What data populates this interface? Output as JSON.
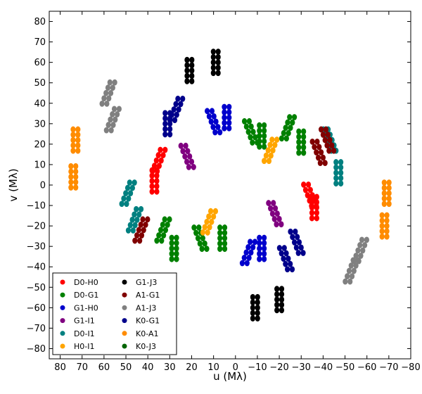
{
  "chart_data": {
    "type": "scatter",
    "xlabel": "u (Mλ)",
    "ylabel": "v (Mλ)",
    "xlim": [
      85,
      -80
    ],
    "ylim": [
      -85,
      85
    ],
    "x_ticks": [
      80,
      70,
      60,
      50,
      40,
      30,
      20,
      10,
      0,
      -10,
      -20,
      -30,
      -40,
      -50,
      -60,
      -70,
      -80
    ],
    "y_ticks": [
      80,
      70,
      60,
      50,
      40,
      30,
      20,
      10,
      0,
      -10,
      -20,
      -30,
      -40,
      -50,
      -60,
      -70,
      -80
    ],
    "x_tick_labels": [
      "80",
      "70",
      "60",
      "50",
      "40",
      "30",
      "20",
      "10",
      "0",
      "−10",
      "−20",
      "−30",
      "−40",
      "−50",
      "−60",
      "−70",
      "−80"
    ],
    "y_tick_labels": [
      "80",
      "70",
      "60",
      "50",
      "40",
      "30",
      "20",
      "10",
      "0",
      "−10",
      "−20",
      "−30",
      "−40",
      "−50",
      "−60",
      "−70",
      "−80"
    ],
    "grid": false,
    "legend_position": "lower-left",
    "series": [
      {
        "name": "D0-H0",
        "color": "#ff0000",
        "clusters": [
          [
            35,
            12,
            -1
          ],
          [
            37,
            2,
            0
          ],
          [
            -34,
            -5,
            1
          ],
          [
            -36,
            -11,
            0
          ]
        ]
      },
      {
        "name": "D0-G1",
        "color": "#008000",
        "clusters": [
          [
            33,
            -22,
            -1
          ],
          [
            28,
            -31,
            0
          ],
          [
            16,
            -26,
            1
          ],
          [
            6,
            -26,
            0
          ],
          [
            -7,
            26,
            1
          ],
          [
            -12,
            24,
            0
          ],
          [
            -24,
            28,
            -1
          ],
          [
            -30,
            21,
            0
          ]
        ]
      },
      {
        "name": "G1-H0",
        "color": "#0000cc",
        "clusters": [
          [
            10,
            31,
            1
          ],
          [
            4,
            33,
            0
          ],
          [
            -6,
            -33,
            -1
          ],
          [
            -12,
            -31,
            0
          ]
        ]
      },
      {
        "name": "G1-I1",
        "color": "#800080",
        "clusters": [
          [
            22,
            14,
            1
          ],
          [
            -18,
            -14,
            1
          ]
        ]
      },
      {
        "name": "D0-I1",
        "color": "#008080",
        "clusters": [
          [
            49,
            -4,
            -1
          ],
          [
            46,
            -17,
            -1
          ],
          [
            -43,
            22,
            1
          ],
          [
            -47,
            6,
            0
          ]
        ]
      },
      {
        "name": "H0-I1",
        "color": "#ffa500",
        "clusters": [
          [
            12,
            -18,
            -1
          ],
          [
            -16,
            17,
            -1
          ]
        ]
      },
      {
        "name": "G1-J3",
        "color": "#000000",
        "clusters": [
          [
            21,
            56,
            0
          ],
          [
            9,
            60,
            0
          ],
          [
            -9,
            -60,
            0
          ],
          [
            -20,
            -56,
            0
          ]
        ]
      },
      {
        "name": "A1-G1",
        "color": "#800000",
        "clusters": [
          [
            43,
            -22,
            -1
          ],
          [
            -38,
            16,
            1
          ],
          [
            -42,
            22,
            1
          ]
        ]
      },
      {
        "name": "A1-J3",
        "color": "#808080",
        "clusters": [
          [
            58,
            45,
            -1
          ],
          [
            56,
            32,
            -1
          ],
          [
            -53,
            -42,
            -1
          ],
          [
            -57,
            -32,
            -1
          ]
        ]
      },
      {
        "name": "K0-G1",
        "color": "#00008b",
        "clusters": [
          [
            27,
            37,
            -1
          ],
          [
            31,
            30,
            0
          ],
          [
            -23,
            -36,
            1
          ],
          [
            -28,
            -28,
            1
          ]
        ]
      },
      {
        "name": "K0-A1",
        "color": "#ff8c00",
        "clusters": [
          [
            73,
            22,
            0
          ],
          [
            74,
            4,
            0
          ],
          [
            -68,
            -20,
            0
          ],
          [
            -69,
            -4,
            0
          ]
        ]
      },
      {
        "name": "K0-J3",
        "color": "#006400",
        "clusters": []
      }
    ]
  }
}
